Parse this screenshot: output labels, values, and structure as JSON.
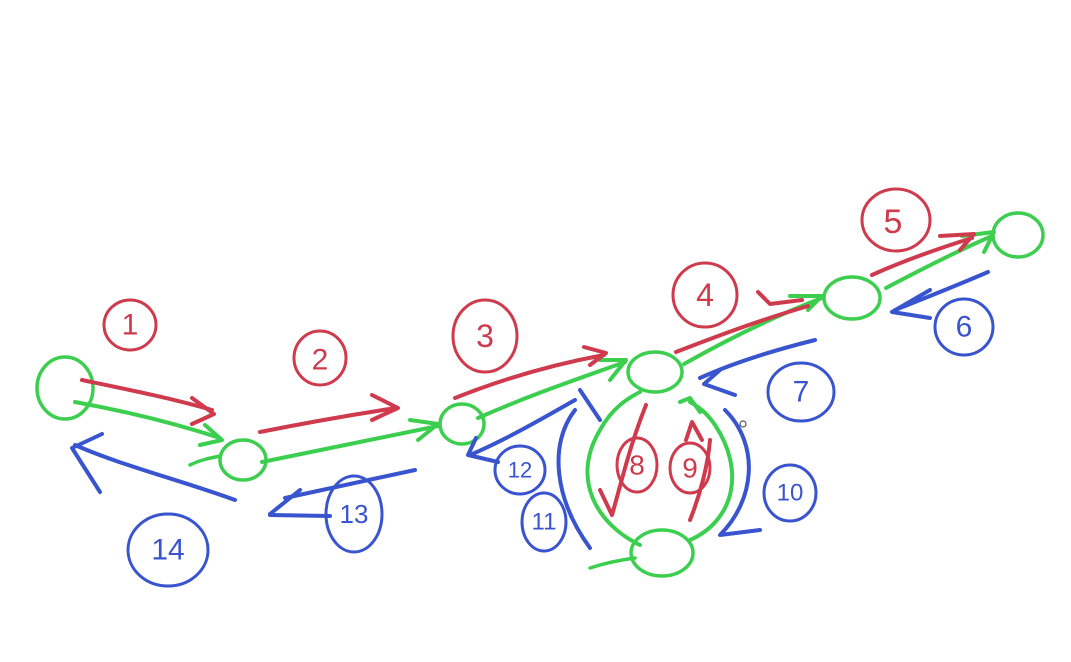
{
  "colors": {
    "red": "#cf3a4c",
    "green": "#3ccf4f",
    "blue": "#3954cf",
    "background": "#ffffff"
  },
  "labels": {
    "l1": "1",
    "l2": "2",
    "l3": "3",
    "l4": "4",
    "l5": "5",
    "l6": "6",
    "l7": "7",
    "l8": "8",
    "l9": "9",
    "l10": "10",
    "l11": "11",
    "l12": "12",
    "l13": "13",
    "l14": "14"
  },
  "cursor_icon": "cursor-icon"
}
